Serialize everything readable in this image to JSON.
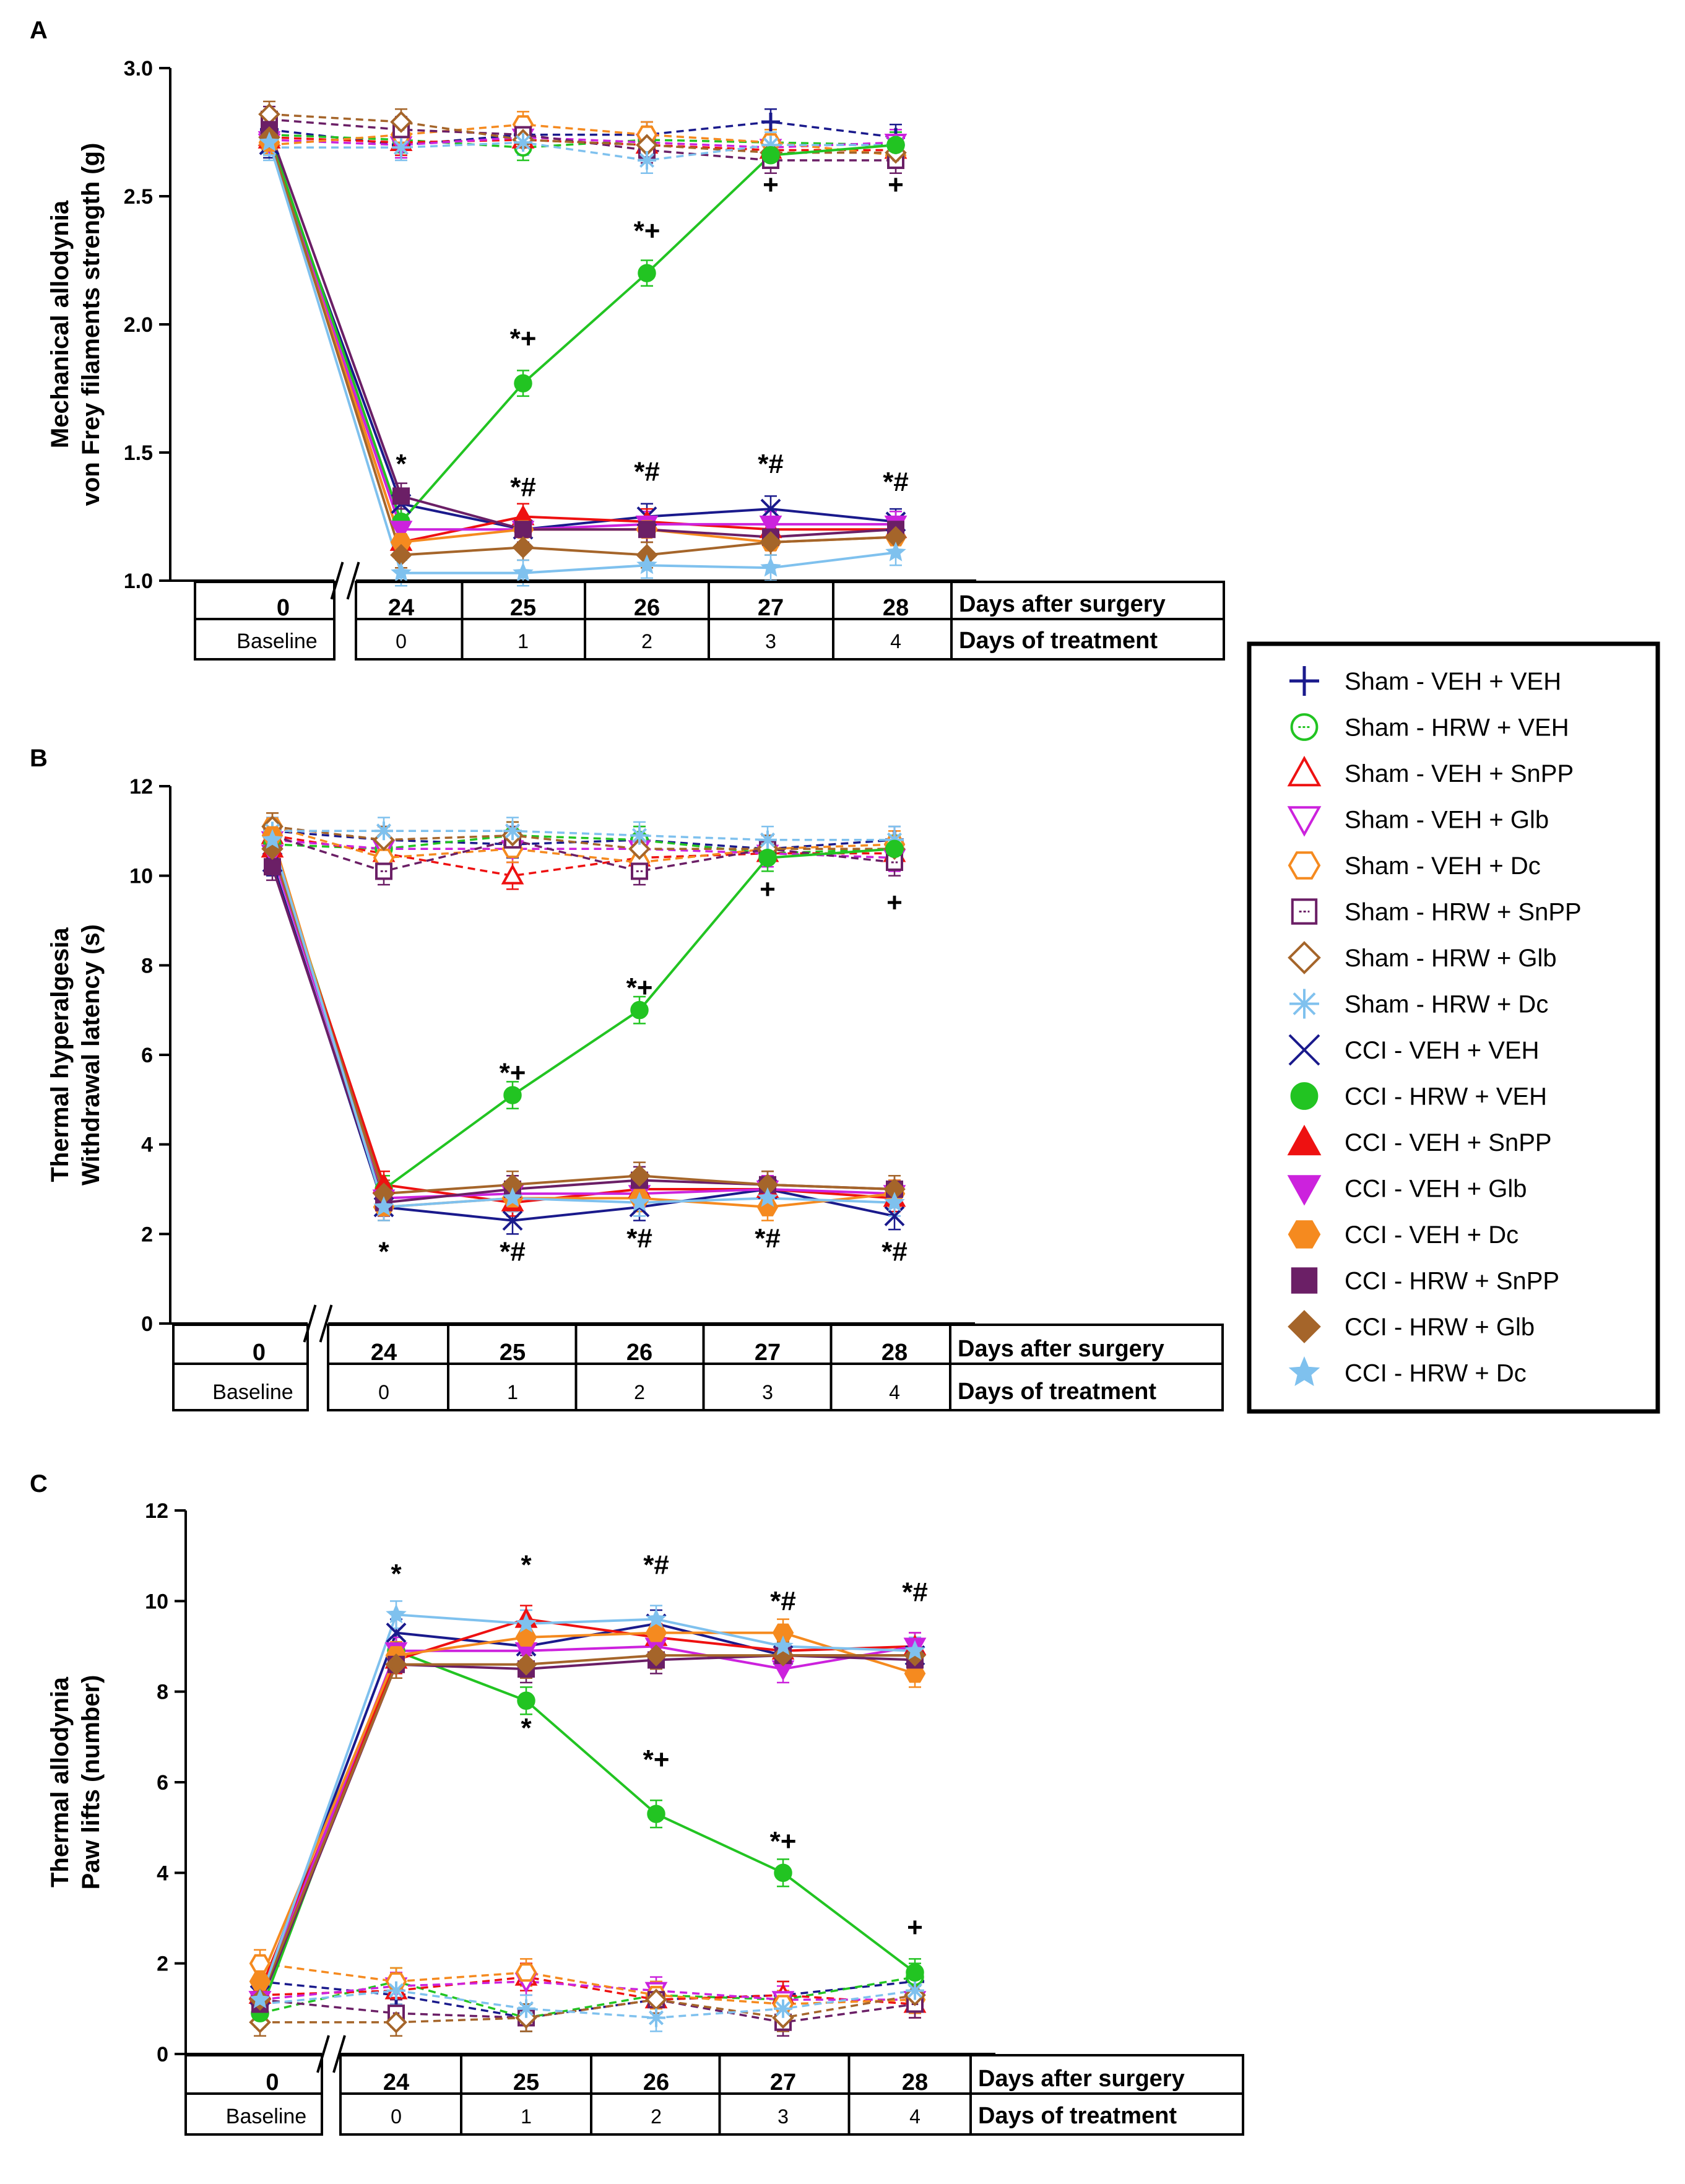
{
  "chart_data": {
    "type": "line",
    "legend": {
      "placement": "right",
      "entries": [
        {
          "id": "s1",
          "name": "Sham - VEH + VEH",
          "color": "#1a1a8c",
          "marker": "plus",
          "dashed": true,
          "fill": false
        },
        {
          "id": "s2",
          "name": "Sham - HRW + VEH",
          "color": "#22c422",
          "marker": "circle",
          "dashed": true,
          "fill": false
        },
        {
          "id": "s3",
          "name": "Sham - VEH + SnPP",
          "color": "#ee1111",
          "marker": "triangle-up",
          "dashed": true,
          "fill": false
        },
        {
          "id": "s4",
          "name": "Sham - VEH + Glb",
          "color": "#cc22dd",
          "marker": "triangle-down",
          "dashed": true,
          "fill": false
        },
        {
          "id": "s5",
          "name": "Sham - VEH + Dc",
          "color": "#f58a1f",
          "marker": "hexagon",
          "dashed": true,
          "fill": false
        },
        {
          "id": "s6",
          "name": "Sham - HRW + SnPP",
          "color": "#6b1f66",
          "marker": "square",
          "dashed": true,
          "fill": false
        },
        {
          "id": "s7",
          "name": "Sham - HRW + Glb",
          "color": "#a5652a",
          "marker": "diamond",
          "dashed": true,
          "fill": false
        },
        {
          "id": "s8",
          "name": "Sham - HRW + Dc",
          "color": "#7fc1ee",
          "marker": "asterisk",
          "dashed": true,
          "fill": false
        },
        {
          "id": "c1",
          "name": "CCI - VEH + VEH",
          "color": "#1a1a8c",
          "marker": "x",
          "dashed": false,
          "fill": true
        },
        {
          "id": "c2",
          "name": "CCI - HRW + VEH",
          "color": "#22c422",
          "marker": "circle",
          "dashed": false,
          "fill": true
        },
        {
          "id": "c3",
          "name": "CCI - VEH + SnPP",
          "color": "#ee1111",
          "marker": "triangle-up",
          "dashed": false,
          "fill": true
        },
        {
          "id": "c4",
          "name": "CCI - VEH + Glb",
          "color": "#cc22dd",
          "marker": "triangle-down",
          "dashed": false,
          "fill": true
        },
        {
          "id": "c5",
          "name": "CCI - VEH + Dc",
          "color": "#f58a1f",
          "marker": "hexagon",
          "dashed": false,
          "fill": true
        },
        {
          "id": "c6",
          "name": "CCI - HRW + SnPP",
          "color": "#6b1f66",
          "marker": "square",
          "dashed": false,
          "fill": true
        },
        {
          "id": "c7",
          "name": "CCI - HRW + Glb",
          "color": "#a5652a",
          "marker": "diamond",
          "dashed": false,
          "fill": true
        },
        {
          "id": "c8",
          "name": "CCI - HRW + Dc",
          "color": "#7fc1ee",
          "marker": "star",
          "dashed": false,
          "fill": true
        }
      ]
    },
    "table": {
      "days_after_surgery_label": "Days after surgery",
      "days_of_treatment_label": "Days of treatment",
      "baseline_day": "0",
      "baseline_label": "Baseline",
      "days_after_surgery": [
        "24",
        "25",
        "26",
        "27",
        "28"
      ],
      "days_of_treatment": [
        "0",
        "1",
        "2",
        "3",
        "4"
      ]
    },
    "panels": [
      {
        "letter": "A",
        "ylabel_line1": "Mechanical allodynia",
        "ylabel_line2": "von Frey filaments strength (g)",
        "ylim": [
          1.0,
          3.0
        ],
        "yticks": [
          "1.0",
          "1.5",
          "2.0",
          "2.5",
          "3.0"
        ],
        "x": [
          "Baseline",
          "24",
          "25",
          "26",
          "27",
          "28"
        ],
        "series": {
          "s1": [
            2.76,
            2.7,
            2.74,
            2.74,
            2.79,
            2.73
          ],
          "s2": [
            2.74,
            2.72,
            2.69,
            2.72,
            2.71,
            2.7
          ],
          "s3": [
            2.73,
            2.71,
            2.72,
            2.7,
            2.68,
            2.68
          ],
          "s4": [
            2.72,
            2.7,
            2.73,
            2.71,
            2.69,
            2.71
          ],
          "s5": [
            2.7,
            2.74,
            2.78,
            2.74,
            2.71,
            2.66
          ],
          "s6": [
            2.8,
            2.76,
            2.74,
            2.68,
            2.64,
            2.64
          ],
          "s7": [
            2.82,
            2.79,
            2.72,
            2.7,
            2.67,
            2.67
          ],
          "s8": [
            2.69,
            2.69,
            2.71,
            2.64,
            2.7,
            2.7
          ],
          "c1": [
            2.7,
            1.3,
            1.2,
            1.25,
            1.28,
            1.23
          ],
          "c2": [
            2.74,
            1.23,
            1.77,
            2.2,
            2.66,
            2.7
          ],
          "c3": [
            2.72,
            1.15,
            1.25,
            1.23,
            1.2,
            1.2
          ],
          "c4": [
            2.71,
            1.2,
            1.2,
            1.22,
            1.22,
            1.22
          ],
          "c5": [
            2.71,
            1.15,
            1.2,
            1.2,
            1.15,
            1.17
          ],
          "c6": [
            2.76,
            1.33,
            1.2,
            1.2,
            1.17,
            1.2
          ],
          "c7": [
            2.73,
            1.1,
            1.13,
            1.1,
            1.15,
            1.17
          ],
          "c8": [
            2.71,
            1.03,
            1.03,
            1.06,
            1.05,
            1.11
          ]
        },
        "annotations": [
          {
            "text": "*",
            "x": "24",
            "y": 1.42
          },
          {
            "text": "*#",
            "x": "25",
            "y": 1.33
          },
          {
            "text": "*#",
            "x": "26",
            "y": 1.39
          },
          {
            "text": "*#",
            "x": "27",
            "y": 1.42
          },
          {
            "text": "*#",
            "x": "28",
            "y": 1.35
          },
          {
            "text": "*+",
            "x": "25",
            "y": 1.91
          },
          {
            "text": "*+",
            "x": "26",
            "y": 2.33
          },
          {
            "text": "+",
            "x": "27",
            "y": 2.51
          },
          {
            "text": "+",
            "x": "28",
            "y": 2.51
          }
        ]
      },
      {
        "letter": "B",
        "ylabel_line1": "Thermal hyperalgesia",
        "ylabel_line2": "Withdrawal latency (s)",
        "ylim": [
          0,
          12
        ],
        "yticks": [
          "0",
          "2",
          "4",
          "6",
          "8",
          "10",
          "12"
        ],
        "x": [
          "Baseline",
          "24",
          "25",
          "26",
          "27",
          "28"
        ],
        "series": {
          "s1": [
            11.0,
            10.8,
            10.7,
            10.8,
            10.6,
            10.8
          ],
          "s2": [
            10.7,
            10.6,
            10.9,
            10.8,
            10.5,
            10.6
          ],
          "s3": [
            10.9,
            10.5,
            10.0,
            10.4,
            10.5,
            10.5
          ],
          "s4": [
            10.8,
            10.6,
            10.6,
            10.6,
            10.5,
            10.4
          ],
          "s5": [
            11.1,
            10.4,
            10.6,
            10.3,
            10.6,
            10.7
          ],
          "s6": [
            10.9,
            10.1,
            10.8,
            10.1,
            10.6,
            10.3
          ],
          "s7": [
            11.1,
            10.8,
            10.9,
            10.6,
            10.6,
            10.6
          ],
          "s8": [
            11.0,
            11.0,
            11.0,
            10.9,
            10.8,
            10.8
          ],
          "c1": [
            10.3,
            2.6,
            2.3,
            2.6,
            3.0,
            2.4
          ],
          "c2": [
            10.7,
            3.0,
            5.1,
            7.0,
            10.4,
            10.6
          ],
          "c3": [
            10.6,
            3.1,
            2.7,
            3.0,
            3.0,
            2.8
          ],
          "c4": [
            10.5,
            2.8,
            2.9,
            2.9,
            3.0,
            2.9
          ],
          "c5": [
            10.9,
            2.6,
            2.8,
            2.8,
            2.6,
            2.9
          ],
          "c6": [
            10.2,
            2.7,
            3.0,
            3.2,
            3.1,
            3.0
          ],
          "c7": [
            10.6,
            2.9,
            3.1,
            3.3,
            3.1,
            3.0
          ],
          "c8": [
            10.8,
            2.6,
            2.8,
            2.7,
            2.8,
            2.7
          ]
        },
        "annotations": [
          {
            "text": "*",
            "x": "24",
            "y": 1.4
          },
          {
            "text": "*#",
            "x": "25",
            "y": 1.4
          },
          {
            "text": "*#",
            "x": "26",
            "y": 1.7
          },
          {
            "text": "*#",
            "x": "27",
            "y": 1.7
          },
          {
            "text": "*#",
            "x": "28",
            "y": 1.4
          },
          {
            "text": "*+",
            "x": "25",
            "y": 5.4
          },
          {
            "text": "*+",
            "x": "26",
            "y": 7.3
          },
          {
            "text": "+",
            "x": "27",
            "y": 9.5
          },
          {
            "text": "+",
            "x": "28",
            "y": 9.2
          }
        ]
      },
      {
        "letter": "C",
        "ylabel_line1": "Thermal allodynia",
        "ylabel_line2": "Paw lifts (number)",
        "ylim": [
          0,
          12
        ],
        "yticks": [
          "0",
          "2",
          "4",
          "6",
          "8",
          "10",
          "12"
        ],
        "x": [
          "Baseline",
          "24",
          "25",
          "26",
          "27",
          "28"
        ],
        "series": {
          "s1": [
            1.6,
            1.3,
            0.8,
            1.2,
            1.3,
            1.6
          ],
          "s2": [
            0.9,
            1.6,
            0.8,
            1.3,
            1.2,
            1.7
          ],
          "s3": [
            1.3,
            1.4,
            1.7,
            1.2,
            1.3,
            1.1
          ],
          "s4": [
            1.2,
            1.5,
            1.6,
            1.4,
            1.2,
            1.2
          ],
          "s5": [
            2.0,
            1.6,
            1.8,
            1.3,
            1.1,
            1.2
          ],
          "s6": [
            1.2,
            0.9,
            0.8,
            1.2,
            0.7,
            1.1
          ],
          "s7": [
            0.7,
            0.7,
            0.8,
            1.2,
            0.8,
            1.3
          ],
          "s8": [
            1.1,
            1.4,
            1.0,
            0.8,
            1.0,
            1.4
          ],
          "c1": [
            1.3,
            9.3,
            9.0,
            9.5,
            8.8,
            8.8
          ],
          "c2": [
            0.9,
            8.9,
            7.8,
            5.3,
            4.0,
            1.8
          ],
          "c3": [
            1.4,
            8.7,
            9.6,
            9.2,
            8.9,
            9.0
          ],
          "c4": [
            1.2,
            8.9,
            8.9,
            9.0,
            8.5,
            9.0
          ],
          "c5": [
            1.6,
            8.8,
            9.2,
            9.3,
            9.3,
            8.4
          ],
          "c6": [
            1.1,
            8.6,
            8.5,
            8.7,
            8.8,
            8.7
          ],
          "c7": [
            1.2,
            8.6,
            8.6,
            8.8,
            8.8,
            8.8
          ],
          "c8": [
            1.2,
            9.7,
            9.5,
            9.6,
            9.0,
            8.9
          ]
        },
        "annotations": [
          {
            "text": "*",
            "x": "24",
            "y": 10.4
          },
          {
            "text": "*",
            "x": "25",
            "y": 10.6
          },
          {
            "text": "*#",
            "x": "26",
            "y": 10.6
          },
          {
            "text": "*#",
            "x": "27",
            "y": 9.8
          },
          {
            "text": "*#",
            "x": "28",
            "y": 10.0
          },
          {
            "text": "*",
            "x": "25",
            "y": 7.0
          },
          {
            "text": "*+",
            "x": "26",
            "y": 6.3
          },
          {
            "text": "*+",
            "x": "27",
            "y": 4.5
          },
          {
            "text": "+",
            "x": "28",
            "y": 2.6
          }
        ]
      }
    ]
  }
}
